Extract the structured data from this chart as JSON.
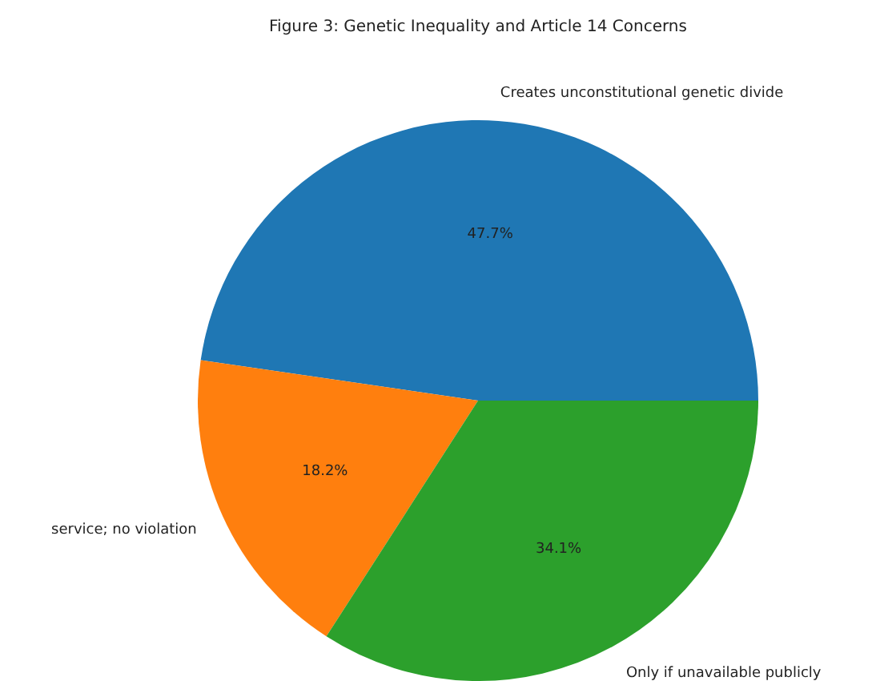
{
  "chart_data": {
    "type": "pie",
    "title": "Figure 3: Genetic Inequality and Article 14 Concerns",
    "categories": [
      "Creates unconstitutional genetic divide",
      "service; no violation",
      "Only if unavailable publicly"
    ],
    "values": [
      47.7,
      18.2,
      34.1
    ],
    "colors": [
      "#1f77b4",
      "#ff7f0e",
      "#2ca02c"
    ],
    "value_labels": [
      "47.7%",
      "18.2%",
      "34.1%"
    ]
  }
}
